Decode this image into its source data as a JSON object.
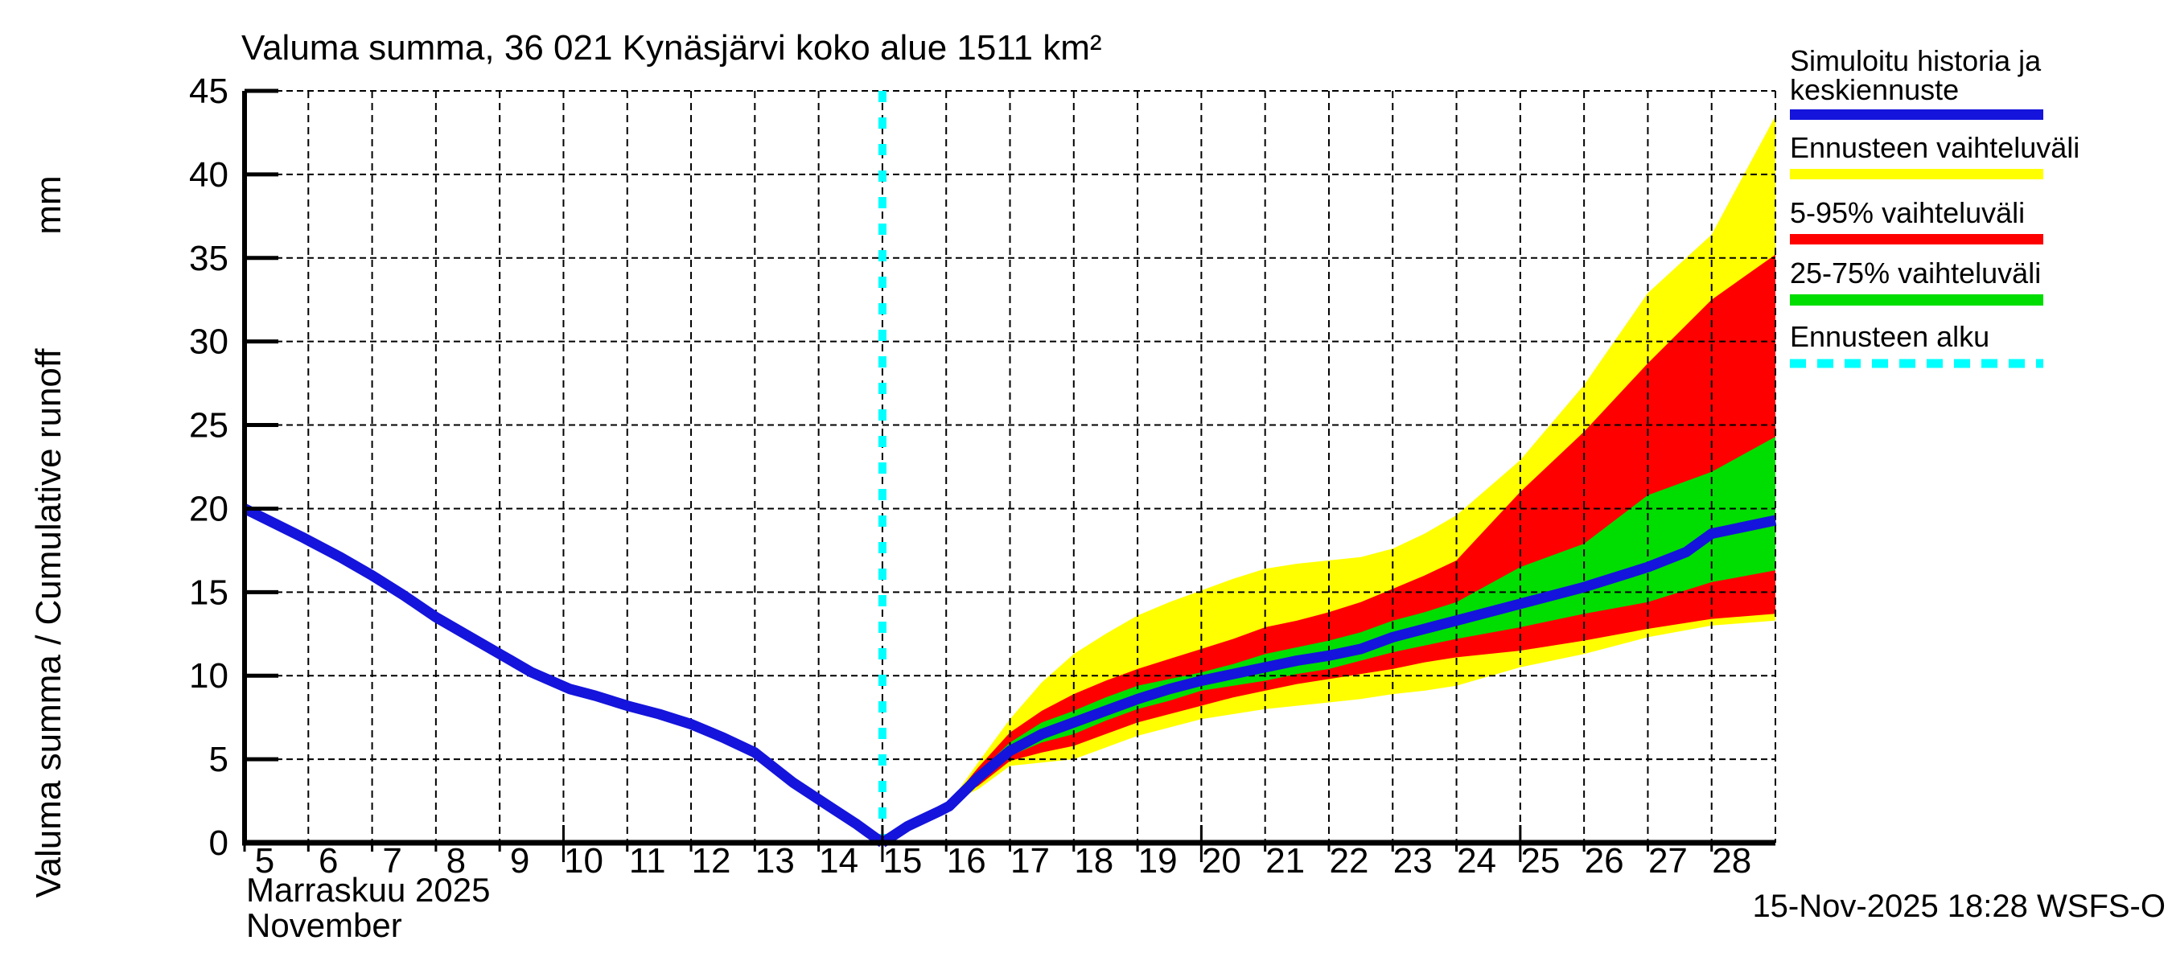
{
  "footer": {
    "timestamp": "15-Nov-2025 18:28 WSFS-O"
  },
  "chart_data": {
    "type": "line",
    "title": "Valuma summa, 36 021 Kynäsjärvi koko alue 1511 km²",
    "ylabel": "Valuma summa / Cumulative runoff",
    "y_unit": "mm",
    "xlabel": [
      "Marraskuu 2025",
      "November"
    ],
    "xlim": [
      5,
      29
    ],
    "ylim": [
      0,
      45
    ],
    "x_ticks": [
      5,
      6,
      7,
      8,
      9,
      10,
      11,
      12,
      13,
      14,
      15,
      16,
      17,
      18,
      19,
      20,
      21,
      22,
      23,
      24,
      25,
      26,
      27,
      28
    ],
    "x_major_ticks": [
      10,
      15,
      20,
      25
    ],
    "y_ticks": [
      0,
      5,
      10,
      15,
      20,
      25,
      30,
      35,
      40,
      45
    ],
    "grid": true,
    "forecast_start": {
      "x": 15,
      "color": "#00ffff",
      "width": 10,
      "dash": "14 19"
    },
    "legend": [
      {
        "label_lines": [
          "Simuloitu historia ja",
          "keskiennuste"
        ],
        "color": "#1414dc",
        "style": "solid"
      },
      {
        "label_lines": [
          "Ennusteen vaihteluväli"
        ],
        "color": "#ffff00",
        "style": "solid"
      },
      {
        "label_lines": [
          "5-95% vaihteluväli"
        ],
        "color": "#ff0000",
        "style": "solid"
      },
      {
        "label_lines": [
          "25-75% vaihteluväli"
        ],
        "color": "#00dd00",
        "style": "solid"
      },
      {
        "label_lines": [
          "Ennusteen alku"
        ],
        "color": "#00ffff",
        "style": "dashed"
      }
    ],
    "series": [
      {
        "name": "ennusteen-vaihteluvali",
        "label": "Ennusteen vaihteluväli",
        "type": "band",
        "color": "#ffff00",
        "x": [
          16.05,
          16.5,
          17,
          17.5,
          18,
          18.5,
          19,
          19.5,
          20,
          20.5,
          21,
          21.5,
          22,
          22.5,
          23,
          23.5,
          24,
          25,
          26,
          27,
          28,
          29
        ],
        "upper": [
          2.4,
          4.8,
          7.4,
          9.6,
          11.3,
          12.5,
          13.6,
          14.4,
          15.1,
          15.8,
          16.4,
          16.7,
          16.9,
          17.1,
          17.6,
          18.5,
          19.6,
          22.9,
          27.4,
          32.9,
          36.4,
          43.5
        ],
        "lower": [
          2.4,
          3.2,
          4.6,
          4.8,
          5.0,
          5.7,
          6.4,
          6.9,
          7.4,
          7.7,
          8.0,
          8.2,
          8.4,
          8.6,
          8.9,
          9.1,
          9.4,
          10.5,
          11.3,
          12.3,
          13.0,
          13.3
        ]
      },
      {
        "name": "5-95-vaihteluvali",
        "label": "5-95% vaihteluväli",
        "type": "band",
        "color": "#ff0000",
        "x": [
          16.05,
          16.5,
          17,
          17.5,
          18,
          18.5,
          19,
          19.5,
          20,
          20.5,
          21,
          21.5,
          22,
          22.5,
          23,
          23.5,
          24,
          25,
          26,
          27,
          28,
          29
        ],
        "upper": [
          2.4,
          4.5,
          6.6,
          7.9,
          8.9,
          9.7,
          10.4,
          11.0,
          11.6,
          12.2,
          12.9,
          13.3,
          13.8,
          14.4,
          15.2,
          16.0,
          16.9,
          21.0,
          24.6,
          28.7,
          32.5,
          35.2
        ],
        "lower": [
          2.4,
          3.4,
          4.9,
          5.4,
          5.8,
          6.5,
          7.2,
          7.7,
          8.2,
          8.7,
          9.1,
          9.5,
          9.8,
          10.1,
          10.4,
          10.8,
          11.1,
          11.5,
          12.1,
          12.8,
          13.4,
          13.7
        ]
      },
      {
        "name": "25-75-vaihteluvali",
        "label": "25-75% vaihteluväli",
        "type": "band",
        "color": "#00dd00",
        "x": [
          16.05,
          16.5,
          17,
          17.5,
          18,
          18.5,
          19,
          19.5,
          20,
          20.5,
          21,
          21.5,
          22,
          22.5,
          23,
          23.5,
          24,
          25,
          26,
          27,
          28,
          29
        ],
        "upper": [
          2.4,
          4.2,
          6.0,
          7.2,
          7.9,
          8.7,
          9.4,
          9.8,
          10.2,
          10.7,
          11.3,
          11.7,
          12.1,
          12.6,
          13.3,
          13.8,
          14.4,
          16.5,
          17.9,
          20.8,
          22.2,
          24.3
        ],
        "lower": [
          2.4,
          3.6,
          5.2,
          6.0,
          6.5,
          7.3,
          8.0,
          8.5,
          9.1,
          9.4,
          9.7,
          10.1,
          10.4,
          10.9,
          11.4,
          11.8,
          12.2,
          12.9,
          13.7,
          14.4,
          15.6,
          16.3
        ]
      },
      {
        "name": "simuloitu-historia",
        "label": "Simuloitu historia",
        "type": "line",
        "color": "#1414dc",
        "width": 13,
        "x": [
          5,
          5.9,
          6.5,
          7,
          7.5,
          8,
          8.5,
          9,
          9.5,
          10.1,
          10.5,
          11,
          11.5,
          12,
          12.5,
          13,
          13.6,
          14.2,
          14.6,
          15
        ],
        "y": [
          20,
          18.3,
          17.1,
          16.0,
          14.8,
          13.5,
          12.4,
          11.3,
          10.2,
          9.2,
          8.8,
          8.2,
          7.7,
          7.1,
          6.3,
          5.4,
          3.6,
          2.1,
          1.1,
          0
        ]
      },
      {
        "name": "keskiennuste",
        "label": "Keskiennuste",
        "type": "line",
        "color": "#1414dc",
        "width": 13,
        "x": [
          15,
          15.4,
          15.9,
          16.05,
          16.5,
          17,
          17.5,
          18,
          18.5,
          19,
          19.5,
          20,
          20.5,
          21,
          21.5,
          22,
          22.5,
          23,
          23.5,
          24,
          25,
          26,
          27,
          27.6,
          28,
          29
        ],
        "y": [
          0,
          1.0,
          1.9,
          2.2,
          3.9,
          5.5,
          6.5,
          7.2,
          7.9,
          8.6,
          9.2,
          9.7,
          10.1,
          10.5,
          10.9,
          11.2,
          11.6,
          12.3,
          12.8,
          13.3,
          14.3,
          15.3,
          16.5,
          17.4,
          18.5,
          19.3
        ]
      }
    ]
  }
}
